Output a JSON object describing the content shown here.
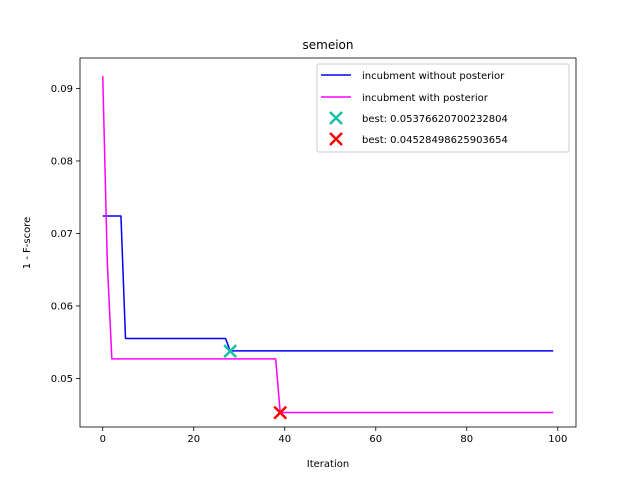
{
  "chart_data": {
    "type": "line",
    "title": "semeion",
    "xlabel": "Iteration",
    "ylabel": "1 - F-score",
    "xlim": [
      -5,
      104
    ],
    "ylim": [
      0.0433,
      0.0942
    ],
    "xticks": [
      0,
      20,
      40,
      60,
      80,
      100
    ],
    "yticks": [
      0.05,
      0.06,
      0.07,
      0.08,
      0.09
    ],
    "ytick_labels": [
      "0.05",
      "0.06",
      "0.07",
      "0.08",
      "0.09"
    ],
    "grid": false,
    "legend_position": "top-right",
    "series": [
      {
        "name": "incubment without posterior",
        "color": "#0000ff",
        "x": [
          0,
          4,
          5,
          27,
          28,
          99
        ],
        "y": [
          0.0724,
          0.0724,
          0.0555,
          0.0555,
          0.0538,
          0.0538
        ]
      },
      {
        "name": "incubment with posterior",
        "color": "#ff00ff",
        "x": [
          0,
          1,
          2,
          38,
          39,
          99
        ],
        "y": [
          0.0917,
          0.066,
          0.0527,
          0.0527,
          0.0453,
          0.0453
        ]
      }
    ],
    "markers": [
      {
        "name": "best: 0.05376620700232804",
        "color": "#17bfa8",
        "x": 28,
        "y": 0.05376620700232804
      },
      {
        "name": "best: 0.04528498625903654",
        "color": "#ff0000",
        "x": 39,
        "y": 0.04528498625903654
      }
    ]
  }
}
